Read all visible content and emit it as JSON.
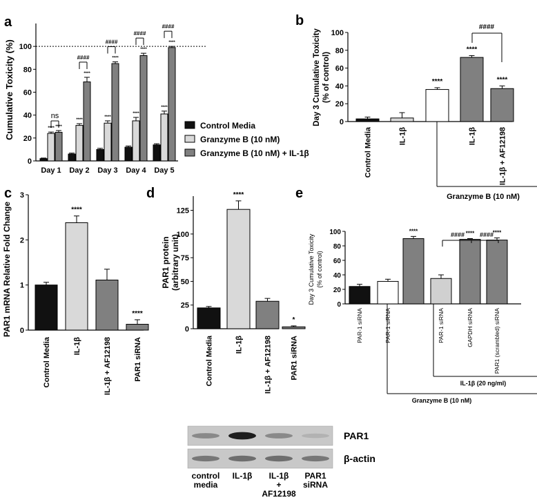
{
  "colors": {
    "black": "#111111",
    "light": "#d9d9d9",
    "dark": "#808080",
    "white": "#ffffff",
    "lighter": "#d0d0d0"
  },
  "chart_data": [
    {
      "panel": "a",
      "type": "bar",
      "ylabel": "Cumulative Toxicity (%)",
      "ylim": [
        0,
        120
      ],
      "yticks": [
        0,
        20,
        40,
        60,
        80,
        100
      ],
      "categories": [
        "Day 1",
        "Day 2",
        "Day 3",
        "Day 4",
        "Day 5"
      ],
      "reference_line": 100,
      "series": [
        {
          "name": "Control Media",
          "values": [
            2,
            6,
            10,
            12,
            14
          ],
          "errors": [
            0.5,
            0.8,
            1,
            1,
            1
          ]
        },
        {
          "name": "Granzyme B (10 nM)",
          "values": [
            24,
            31,
            33,
            35,
            41
          ],
          "errors": [
            1.2,
            1.5,
            2,
            3,
            2.5
          ]
        },
        {
          "name": "Granzyme B (10 nM) + IL-1β",
          "values": [
            25,
            69,
            85,
            92,
            99
          ],
          "errors": [
            1.5,
            4,
            1.5,
            2,
            1
          ]
        }
      ],
      "star_labels": [
        [
          "",
          "****",
          "****"
        ],
        [
          "",
          "****",
          "****"
        ],
        [
          "",
          "****",
          "****"
        ],
        [
          "",
          "****",
          "****"
        ],
        [
          "",
          "****",
          "****"
        ]
      ],
      "brackets": [
        {
          "day": 0,
          "label": "ns"
        },
        {
          "day": 1,
          "label": "####"
        },
        {
          "day": 2,
          "label": "####"
        },
        {
          "day": 3,
          "label": "####"
        },
        {
          "day": 4,
          "label": "####"
        }
      ],
      "legend": [
        "Control Media",
        "Granzyme B (10 nM)",
        "Granzyme B (10 nM) + IL-1β"
      ]
    },
    {
      "panel": "b",
      "type": "bar",
      "ylabel_line1": "Day 3 Cumulative Toxicity",
      "ylabel_line2": "(% of control)",
      "ylim": [
        0,
        100
      ],
      "yticks": [
        0,
        20,
        40,
        60,
        80,
        100
      ],
      "categories": [
        "Control Media",
        "IL-1β",
        "",
        "IL-1β",
        "IL-1β + AF12198"
      ],
      "values": [
        3,
        4,
        36,
        72,
        37
      ],
      "errors": [
        2,
        6,
        2,
        2,
        3
      ],
      "fill_keys": [
        "black",
        "light",
        "white",
        "dark",
        "dark"
      ],
      "stars": [
        "",
        "",
        "****",
        "****",
        "****"
      ],
      "bracket_label": "####",
      "group_label": "Granzyme B (10 nM)"
    },
    {
      "panel": "c",
      "type": "bar",
      "ylabel": "PAR1 mRNA Relative Fold Change",
      "ylim": [
        0,
        3
      ],
      "yticks": [
        0,
        1,
        2,
        3
      ],
      "categories": [
        "Control Media",
        "IL-1β",
        "IL-1β + AF12198",
        "PAR1 siRNA"
      ],
      "values": [
        1.0,
        2.38,
        1.11,
        0.13
      ],
      "errors": [
        0.06,
        0.15,
        0.24,
        0.1
      ],
      "fill_keys": [
        "black",
        "light",
        "dark",
        "dark"
      ],
      "stars": [
        "",
        "****",
        "",
        "****"
      ]
    },
    {
      "panel": "d",
      "type": "bar",
      "ylabel_line1": "PAR1 protein",
      "ylabel_line2": "(arbitrary unit)",
      "ylim": [
        0,
        140
      ],
      "yticks": [
        0,
        25,
        50,
        75,
        100,
        125
      ],
      "categories": [
        "Control Media",
        "IL-1β",
        "IL-1β + AF12198",
        "PAR1 siRNA"
      ],
      "values": [
        22,
        126,
        29,
        2
      ],
      "errors": [
        1.5,
        9,
        3,
        1
      ],
      "fill_keys": [
        "black",
        "light",
        "dark",
        "dark"
      ],
      "stars": [
        "",
        "****",
        "",
        "*"
      ]
    },
    {
      "panel": "e",
      "type": "bar",
      "ylabel_line1": "Day 3 Cumulative Toxicity",
      "ylabel_line2": "(% of control)",
      "ylim": [
        0,
        100
      ],
      "yticks": [
        0,
        20,
        40,
        60,
        80,
        100
      ],
      "categories": [
        "PAR-1 siRNA",
        "PAR-1 siRNA",
        "",
        "PAR-1 siRNA",
        "GAPDH siRNA",
        "PAR1 (scrambled) siRNA"
      ],
      "values": [
        24,
        31,
        90,
        35,
        89,
        88
      ],
      "errors": [
        3,
        3,
        3,
        5,
        1,
        3
      ],
      "fill_keys": [
        "black",
        "white",
        "dark",
        "lighter",
        "dark",
        "dark"
      ],
      "stars": [
        "",
        "",
        "****",
        "",
        "****",
        "****"
      ],
      "bracket_labels": [
        "####",
        "####"
      ],
      "group_label_1": "IL-1β (20 ng/ml)",
      "group_label_2": "Granzyme B (10 nM)"
    }
  ],
  "blot": {
    "rows": [
      "PAR1",
      "β-actin"
    ],
    "lanes": [
      [
        "control",
        "media"
      ],
      [
        "IL-1β"
      ],
      [
        "IL-1β",
        "+",
        "AF12198"
      ],
      [
        "PAR1",
        "siRNA"
      ]
    ],
    "par1_intensity": [
      0.35,
      0.95,
      0.35,
      0.12
    ],
    "actin_intensity": [
      0.45,
      0.5,
      0.5,
      0.45
    ]
  },
  "panel_letters": [
    "a",
    "b",
    "c",
    "d",
    "e"
  ]
}
